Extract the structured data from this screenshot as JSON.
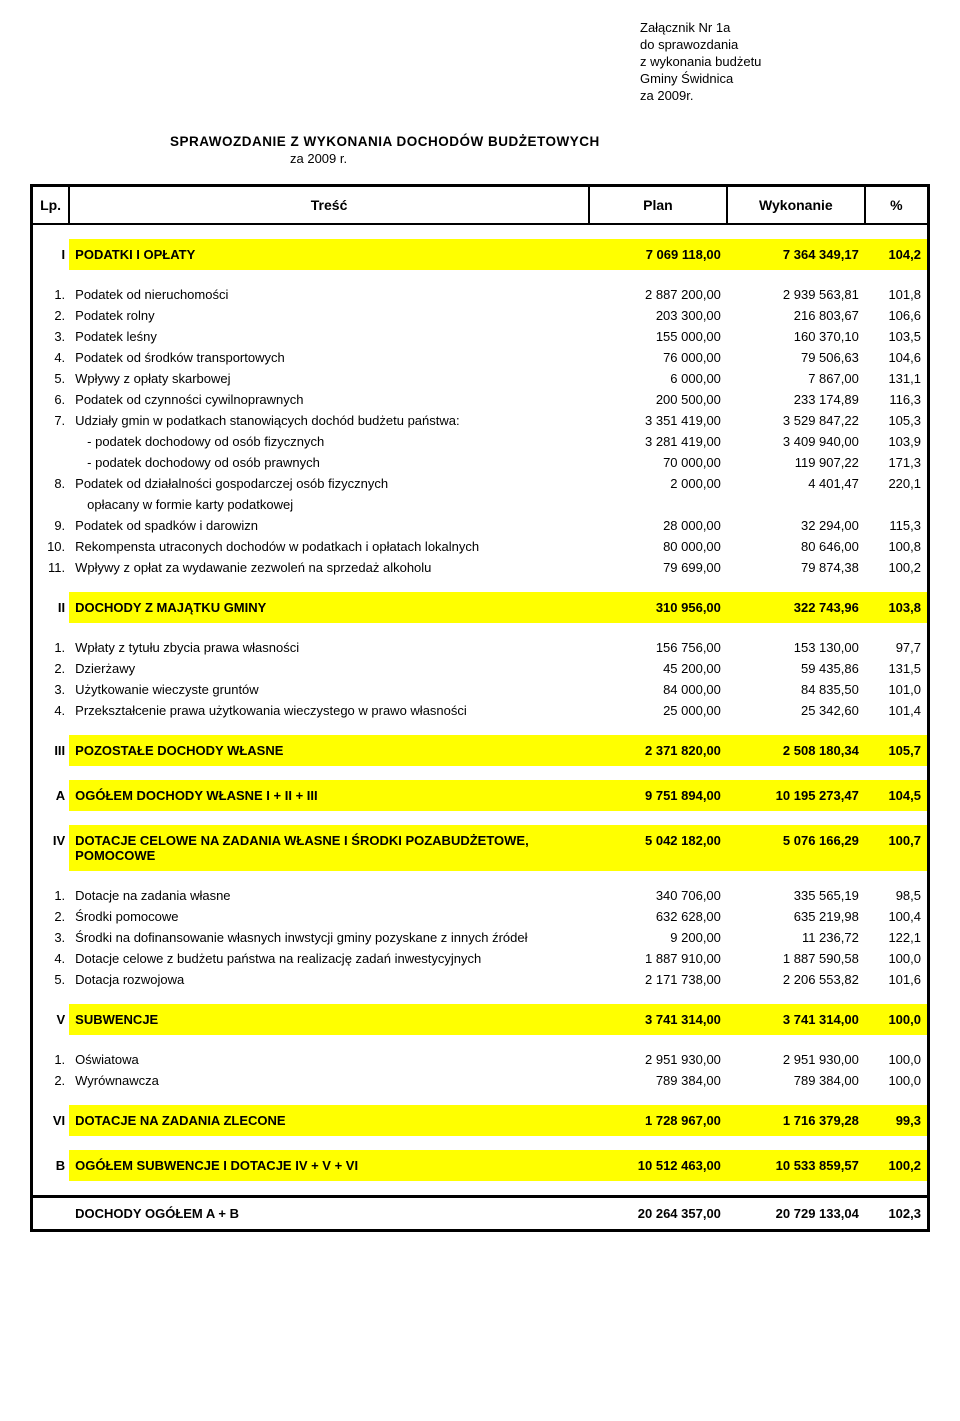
{
  "attachment": {
    "l1": "Załącznik Nr 1a",
    "l2": "do sprawozdania",
    "l3": "z wykonania budżetu",
    "l4": "Gminy Świdnica",
    "l5": "za 2009r."
  },
  "title": "SPRAWOZDANIE  Z  WYKONANIA  DOCHODÓW  BUDŻETOWYCH",
  "subtitle": "za 2009 r.",
  "headers": {
    "lp": "Lp.",
    "desc": "Treść",
    "plan": "Plan",
    "wyk": "Wykonanie",
    "pct": "%"
  },
  "colors": {
    "highlight": "#ffff00",
    "border": "#000000",
    "bg": "#ffffff"
  },
  "sections": [
    {
      "lp": "I",
      "name": "PODATKI I OPŁATY",
      "plan": "7 069 118,00",
      "wyk": "7 364 349,17",
      "pct": "104,2",
      "hl": true,
      "rows": [
        {
          "lp": "1.",
          "desc": "Podatek od nieruchomości",
          "plan": "2 887 200,00",
          "wyk": "2 939 563,81",
          "pct": "101,8"
        },
        {
          "lp": "2.",
          "desc": "Podatek rolny",
          "plan": "203 300,00",
          "wyk": "216 803,67",
          "pct": "106,6"
        },
        {
          "lp": "3.",
          "desc": "Podatek leśny",
          "plan": "155 000,00",
          "wyk": "160 370,10",
          "pct": "103,5"
        },
        {
          "lp": "4.",
          "desc": "Podatek od środków transportowych",
          "plan": "76 000,00",
          "wyk": "79 506,63",
          "pct": "104,6"
        },
        {
          "lp": "5.",
          "desc": "Wpływy z opłaty skarbowej",
          "plan": "6 000,00",
          "wyk": "7 867,00",
          "pct": "131,1"
        },
        {
          "lp": "6.",
          "desc": "Podatek od czynności cywilnoprawnych",
          "plan": "200 500,00",
          "wyk": "233 174,89",
          "pct": "116,3"
        },
        {
          "lp": "7.",
          "desc": "Udziały gmin w podatkach stanowiących dochód budżetu państwa:",
          "plan": "3 351 419,00",
          "wyk": "3 529 847,22",
          "pct": "105,3"
        },
        {
          "lp": "",
          "desc": "- podatek dochodowy od osób fizycznych",
          "plan": "3 281 419,00",
          "wyk": "3 409 940,00",
          "pct": "103,9",
          "indent": true
        },
        {
          "lp": "",
          "desc": "- podatek dochodowy od osób prawnych",
          "plan": "70 000,00",
          "wyk": "119 907,22",
          "pct": "171,3",
          "indent": true
        },
        {
          "lp": "8.",
          "desc": "Podatek od działalności gospodarczej osób fizycznych",
          "plan": "2 000,00",
          "wyk": "4 401,47",
          "pct": "220,1"
        },
        {
          "lp": "",
          "desc": "opłacany w formie karty podatkowej",
          "plan": "",
          "wyk": "",
          "pct": "",
          "indent": true
        },
        {
          "lp": "9.",
          "desc": "Podatek od spadków i darowizn",
          "plan": "28 000,00",
          "wyk": "32 294,00",
          "pct": "115,3"
        },
        {
          "lp": "10.",
          "desc": "Rekompensta utraconych dochodów w podatkach i opłatach lokalnych",
          "plan": "80 000,00",
          "wyk": "80 646,00",
          "pct": "100,8"
        },
        {
          "lp": "11.",
          "desc": "Wpływy z opłat za wydawanie zezwoleń na sprzedaż alkoholu",
          "plan": "79 699,00",
          "wyk": "79 874,38",
          "pct": "100,2"
        }
      ]
    },
    {
      "lp": "II",
      "name": "DOCHODY Z MAJĄTKU GMINY",
      "plan": "310 956,00",
      "wyk": "322 743,96",
      "pct": "103,8",
      "hl": true,
      "rows": [
        {
          "lp": "1.",
          "desc": "Wpłaty z tytułu zbycia prawa własności",
          "plan": "156 756,00",
          "wyk": "153 130,00",
          "pct": "97,7"
        },
        {
          "lp": "2.",
          "desc": "Dzierżawy",
          "plan": "45 200,00",
          "wyk": "59 435,86",
          "pct": "131,5"
        },
        {
          "lp": "3.",
          "desc": "Użytkowanie wieczyste gruntów",
          "plan": "84 000,00",
          "wyk": "84 835,50",
          "pct": "101,0"
        },
        {
          "lp": "4.",
          "desc": "Przekształcenie prawa użytkowania wieczystego w prawo własności",
          "plan": "25 000,00",
          "wyk": "25 342,60",
          "pct": "101,4"
        }
      ]
    },
    {
      "lp": "III",
      "name": "POZOSTAŁE DOCHODY WŁASNE",
      "plan": "2 371 820,00",
      "wyk": "2 508 180,34",
      "pct": "105,7",
      "hl": true,
      "rows": []
    },
    {
      "lp": "A",
      "name": "OGÓŁEM DOCHODY WŁASNE I + II + III",
      "plan": "9 751 894,00",
      "wyk": "10 195 273,47",
      "pct": "104,5",
      "hl": true,
      "rows": []
    },
    {
      "lp": "IV",
      "name": "DOTACJE CELOWE NA ZADANIA WŁASNE I ŚRODKI POZABUDŻETOWE, POMOCOWE",
      "plan": "5 042 182,00",
      "wyk": "5 076 166,29",
      "pct": "100,7",
      "hl": true,
      "rows": [
        {
          "lp": "1.",
          "desc": "Dotacje na zadania własne",
          "plan": "340 706,00",
          "wyk": "335 565,19",
          "pct": "98,5"
        },
        {
          "lp": "2.",
          "desc": "Środki pomocowe",
          "plan": "632 628,00",
          "wyk": "635 219,98",
          "pct": "100,4"
        },
        {
          "lp": "3.",
          "desc": "Środki na dofinansowanie własnych inwstycji gminy pozyskane z innych źródeł",
          "plan": "9 200,00",
          "wyk": "11 236,72",
          "pct": "122,1"
        },
        {
          "lp": "4.",
          "desc": "Dotacje celowe z budżetu państwa na realizację zadań inwestycyjnych",
          "plan": "1 887 910,00",
          "wyk": "1 887 590,58",
          "pct": "100,0"
        },
        {
          "lp": "5.",
          "desc": "Dotacja rozwojowa",
          "plan": "2 171 738,00",
          "wyk": "2 206 553,82",
          "pct": "101,6"
        }
      ]
    },
    {
      "lp": "V",
      "name": "SUBWENCJE",
      "plan": "3 741 314,00",
      "wyk": "3 741 314,00",
      "pct": "100,0",
      "hl": true,
      "rows": [
        {
          "lp": "1.",
          "desc": "Oświatowa",
          "plan": "2 951 930,00",
          "wyk": "2 951 930,00",
          "pct": "100,0"
        },
        {
          "lp": "2.",
          "desc": "Wyrównawcza",
          "plan": "789 384,00",
          "wyk": "789 384,00",
          "pct": "100,0"
        }
      ]
    },
    {
      "lp": "VI",
      "name": "DOTACJE NA ZADANIA ZLECONE",
      "plan": "1 728 967,00",
      "wyk": "1 716 379,28",
      "pct": "99,3",
      "hl": true,
      "rows": []
    },
    {
      "lp": "B",
      "name": "OGÓŁEM SUBWENCJE I DOTACJE IV + V + VI",
      "plan": "10 512 463,00",
      "wyk": "10 533 859,57",
      "pct": "100,2",
      "hl": true,
      "rows": []
    }
  ],
  "grand": {
    "lp": "",
    "name": "DOCHODY OGÓŁEM  A + B",
    "plan": "20 264 357,00",
    "wyk": "20 729 133,04",
    "pct": "102,3"
  }
}
